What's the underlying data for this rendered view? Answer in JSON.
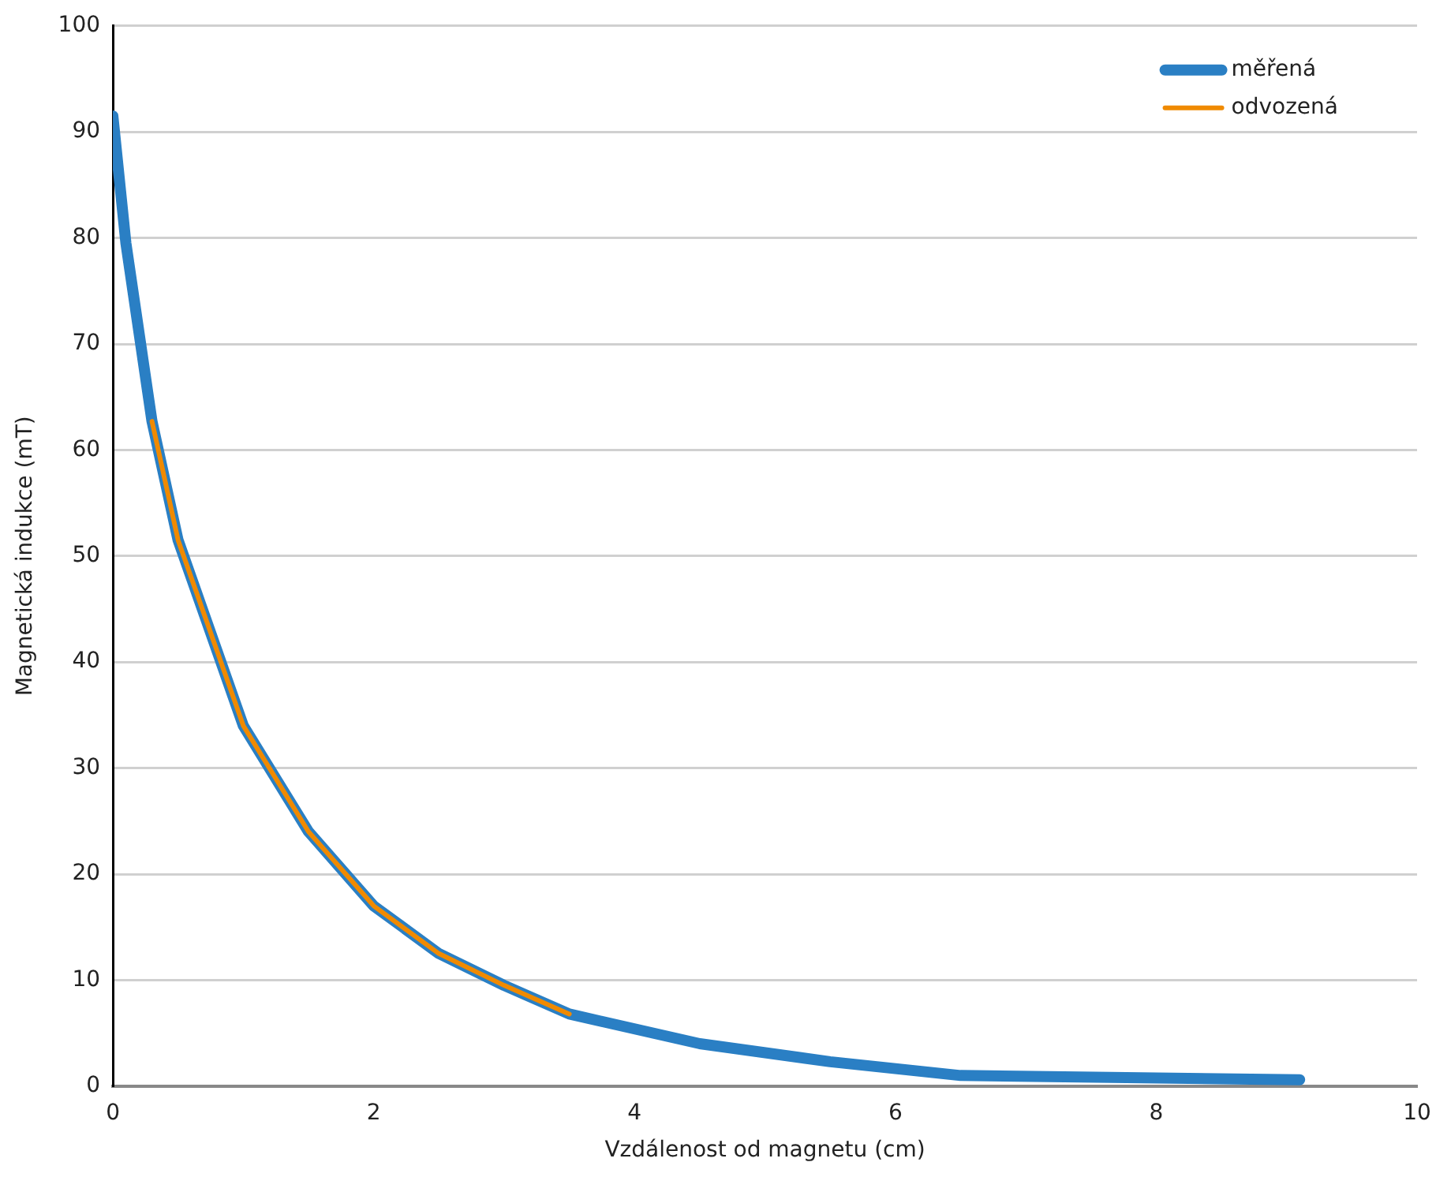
{
  "chart_data": {
    "type": "line",
    "xlabel": "Vzdálenost od magnetu (cm)",
    "ylabel": "Magnetická indukce (mT)",
    "series": [
      {
        "name": "měřená",
        "color": "#2a7fc4",
        "x": [
          0,
          0.1,
          0.3,
          0.5,
          1,
          1.5,
          2,
          2.5,
          3,
          3.5,
          4.5,
          5.5,
          6.5,
          9.1
        ],
        "values": [
          91.5,
          79.5,
          62.7,
          51.5,
          34,
          24,
          17,
          12.5,
          9.5,
          6.8,
          4,
          2.3,
          1,
          0.6
        ]
      },
      {
        "name": "odvozená",
        "color": "#f08a00",
        "x": [
          0.3,
          0.5,
          1,
          1.5,
          2,
          2.5,
          3,
          3.5
        ],
        "values": [
          62.7,
          51.5,
          34,
          24,
          17,
          12.5,
          9.5,
          6.8
        ]
      }
    ],
    "xlim": [
      0,
      10
    ],
    "xticks": [
      0,
      2,
      4,
      6,
      8,
      10
    ],
    "ylim": [
      0,
      100
    ],
    "yticks": [
      0,
      10,
      20,
      30,
      40,
      50,
      60,
      70,
      80,
      90,
      100
    ],
    "grid": "y",
    "legend": "top right",
    "marker": "none",
    "line_style": "solid"
  }
}
